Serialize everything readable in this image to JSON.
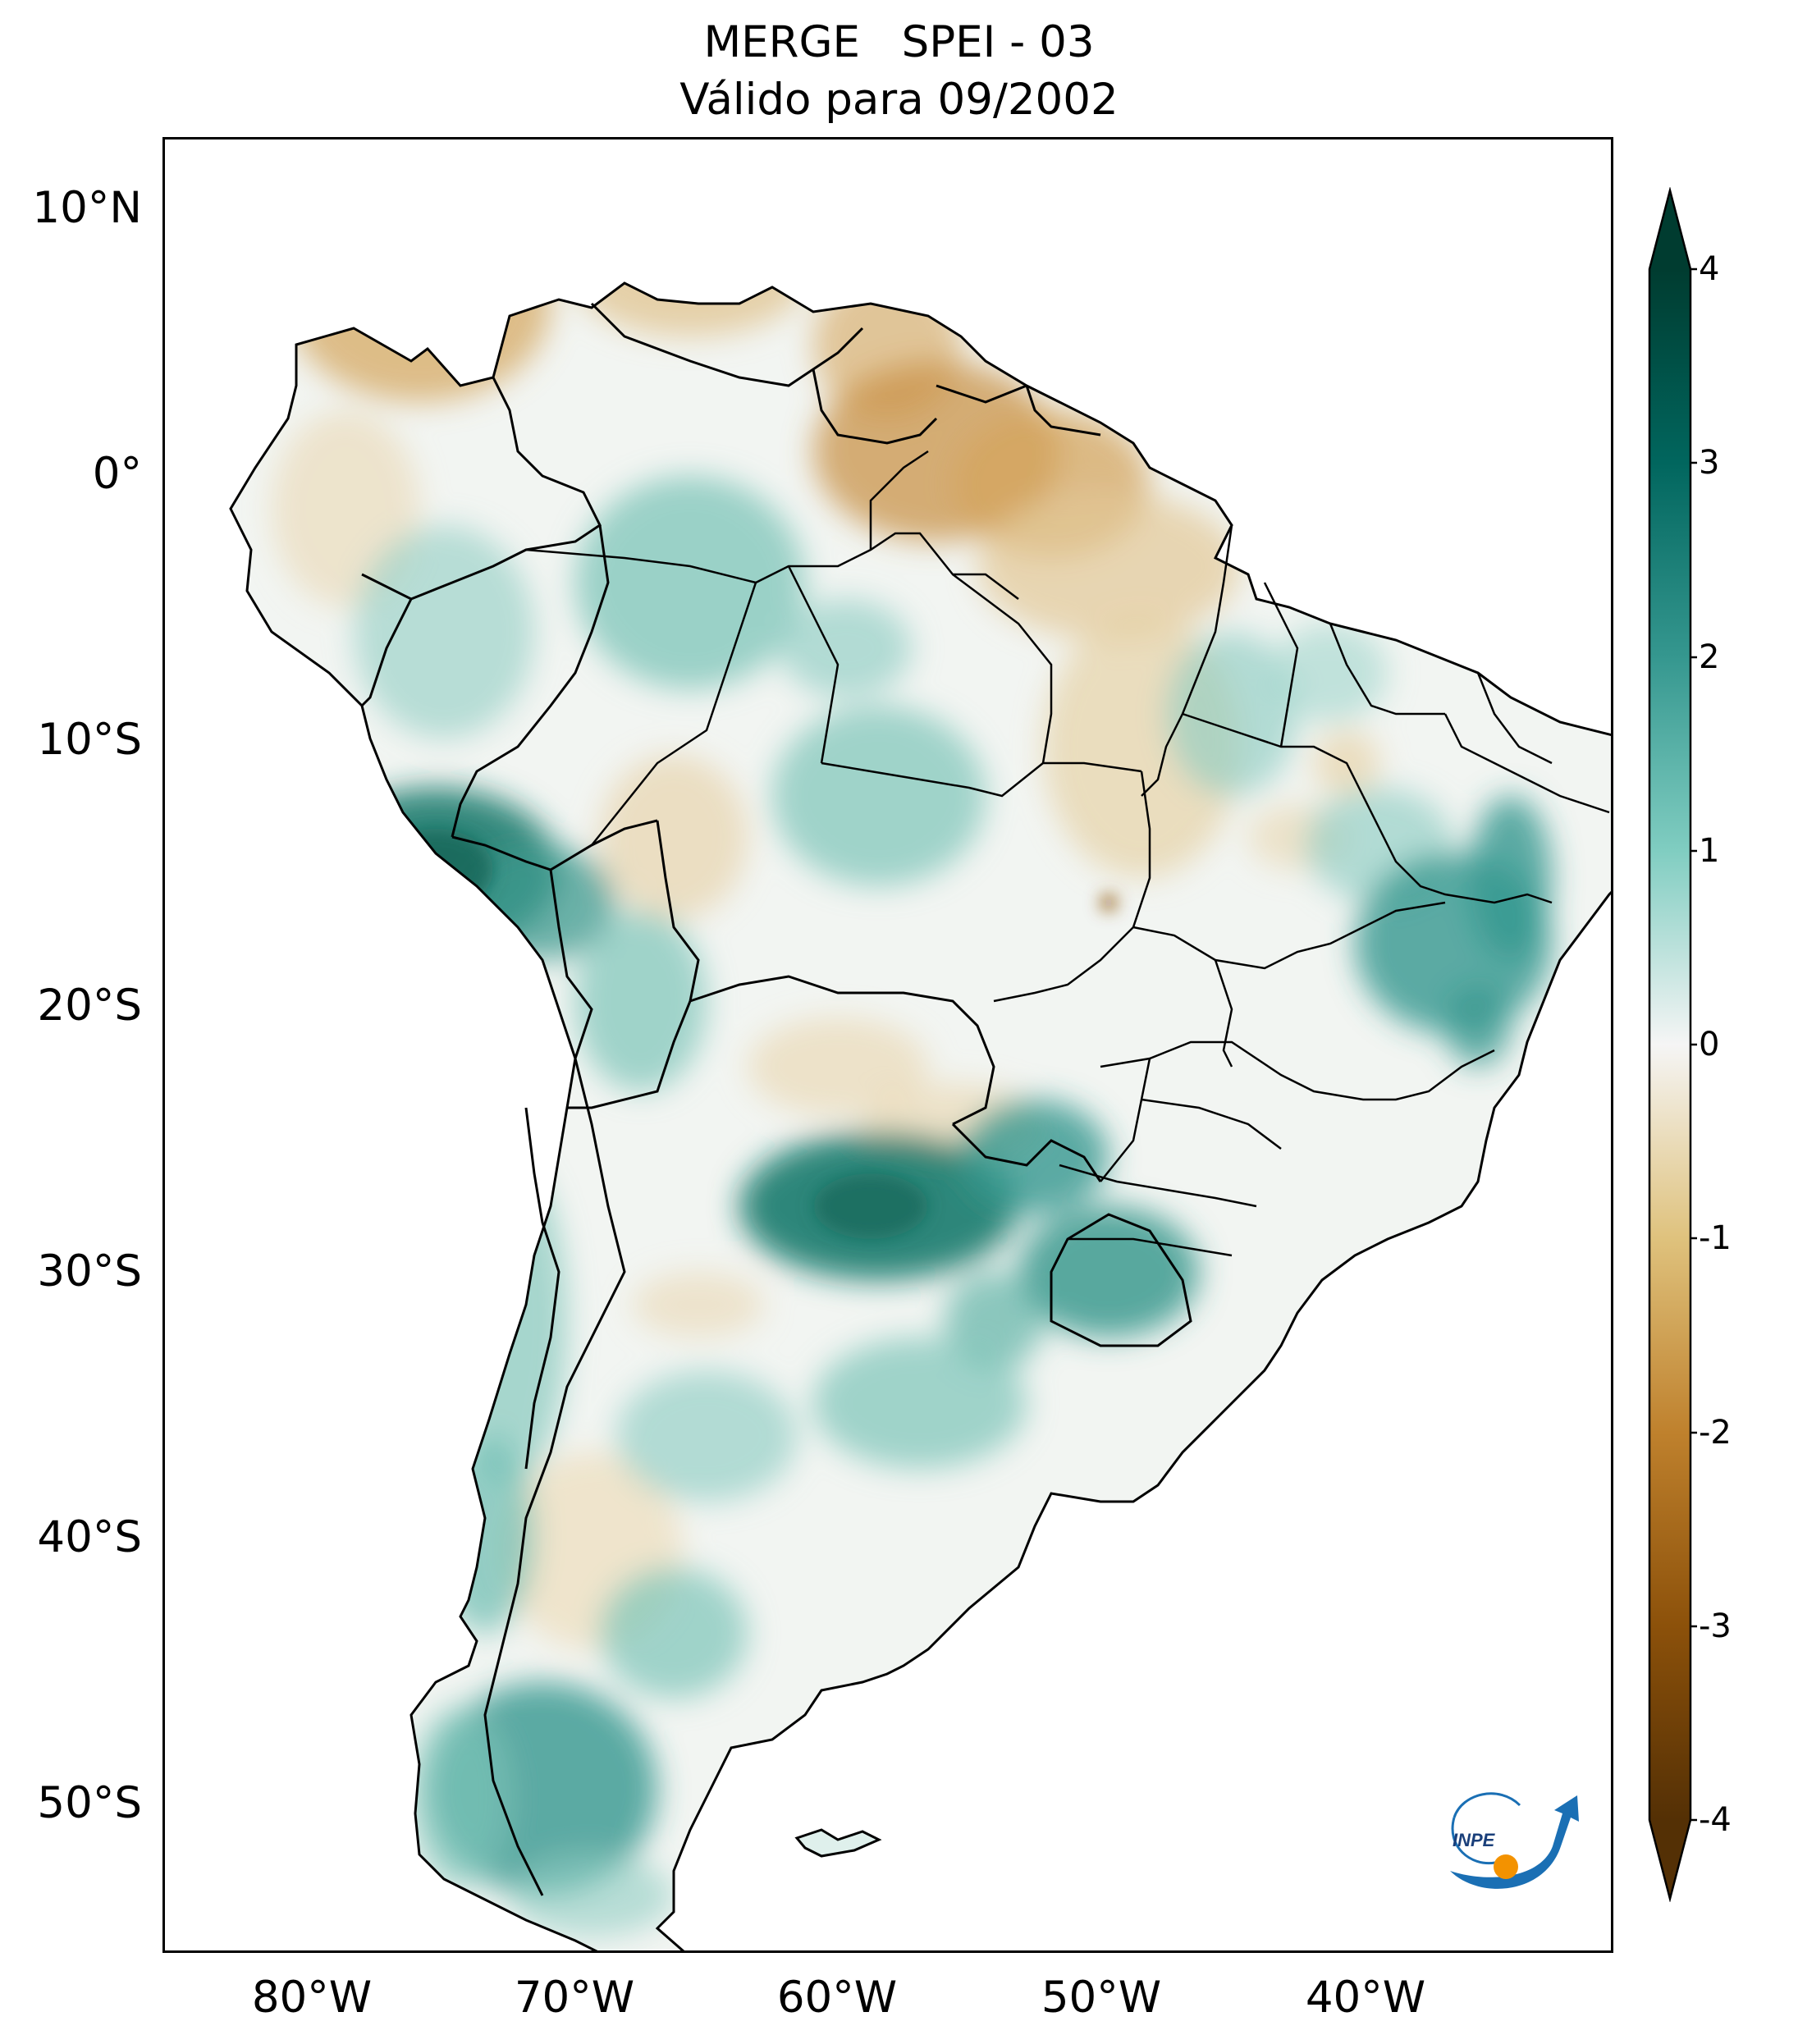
{
  "title_line1": "MERGE   SPEI - 03",
  "title_line2": "Válido para 09/2002",
  "lat_labels": [
    "10°N",
    "0°",
    "10°S",
    "20°S",
    "30°S",
    "40°S",
    "50°S"
  ],
  "lon_labels": [
    "80°W",
    "70°W",
    "60°W",
    "50°W",
    "40°W"
  ],
  "colorbar": {
    "ticks": [
      "4",
      "3",
      "2",
      "1",
      "0",
      "-1",
      "-2",
      "-3",
      "-4"
    ],
    "colormap": "BrBG",
    "range": [
      -4,
      4
    ],
    "extend": "both"
  },
  "logo_text": "INPE",
  "colors": {
    "dry_extreme": "#543005",
    "dry": "#bf812d",
    "neutral": "#f5f5f5",
    "wet": "#35978f",
    "wet_extreme": "#003c30"
  },
  "map": {
    "region": "South America",
    "lon_range": [
      "85°W",
      "30°W"
    ],
    "lat_range": [
      "13°N",
      "56°S"
    ],
    "wet_anomaly_regions": [
      "Peru / central Andes",
      "Argentina / Paraguay / Uruguay / southern Brazil",
      "Minas Gerais / Bahia",
      "Patagonia"
    ],
    "dry_anomaly_regions": [
      "Colombia / Venezuela",
      "Guianas / northern Brazil (Pará, Amapá)",
      "Tocantins / Goiás",
      "central Argentina"
    ]
  }
}
